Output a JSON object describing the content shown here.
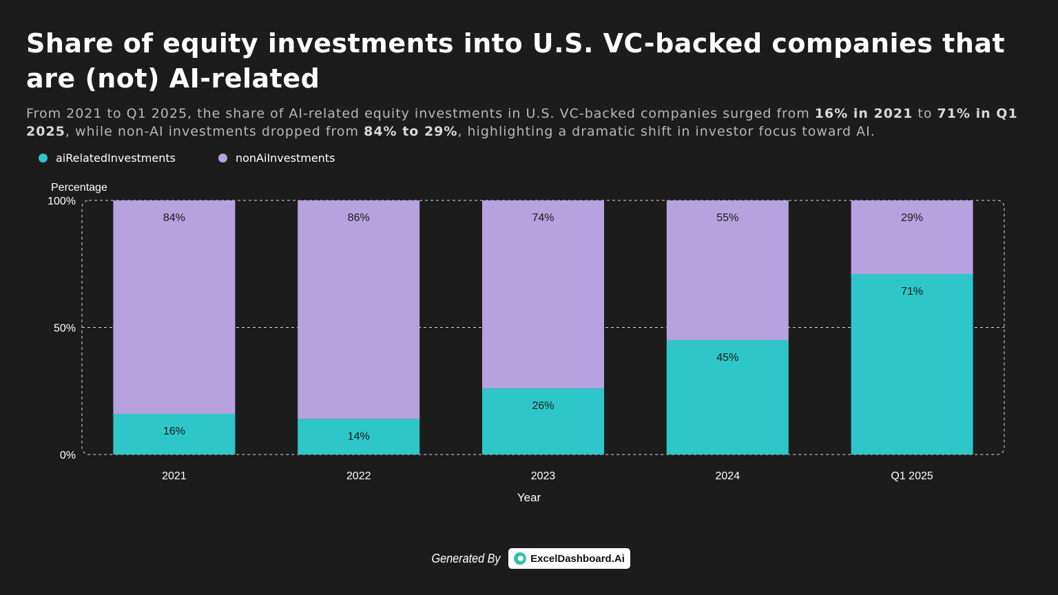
{
  "header": {
    "title": "Share of equity investments into U.S. VC-backed companies that are (not) AI-related",
    "subtitle": {
      "p1": "From 2021 to Q1 2025, the share of AI-related equity investments in U.S. VC-backed companies surged from ",
      "b1": "16% in 2021",
      "p2": " to ",
      "b2": "71% in Q1 2025",
      "p3": ", while non-AI investments dropped from ",
      "b3": "84% to 29%",
      "p4": ", highlighting a dramatic shift in investor focus toward AI."
    }
  },
  "colors": {
    "ai": "#2ec6c9",
    "nonAi": "#b6a2de",
    "background": "#1c1c1c",
    "grid": "#dddddd"
  },
  "chart_data": {
    "type": "bar",
    "stacked": true,
    "categories": [
      "2021",
      "2022",
      "2023",
      "2024",
      "Q1 2025"
    ],
    "series": [
      {
        "name": "aiRelatedInvestments",
        "values": [
          16,
          14,
          26,
          45,
          71
        ],
        "labels": [
          "16%",
          "14%",
          "26%",
          "45%",
          "71%"
        ]
      },
      {
        "name": "nonAiInvestments",
        "values": [
          84,
          86,
          74,
          55,
          29
        ],
        "labels": [
          "84%",
          "86%",
          "74%",
          "55%",
          "29%"
        ]
      }
    ],
    "xlabel": "Year",
    "ylabel": "Percentage",
    "ylim": [
      0,
      100
    ],
    "yticks": [
      {
        "value": 0,
        "label": "0%"
      },
      {
        "value": 50,
        "label": "50%"
      },
      {
        "value": 100,
        "label": "100%"
      }
    ],
    "grid": true,
    "legend_position": "top-left"
  },
  "footer": {
    "generated_by": "Generated By",
    "brand": "ExcelDashboard.Ai",
    "brand_icon": "excel-dashboard-logo-icon"
  }
}
